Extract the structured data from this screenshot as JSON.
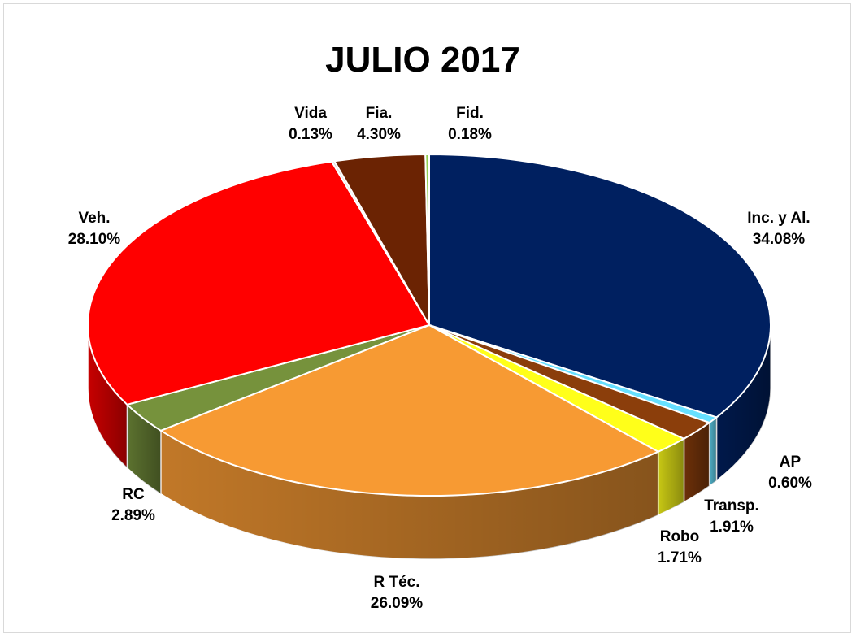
{
  "chart_data": {
    "type": "pie",
    "title": "JULIO 2017",
    "slices": [
      {
        "label": "Inc. y Al.",
        "pct_text": "34.08%",
        "value": 34.08,
        "color": "#002060"
      },
      {
        "label": "AP",
        "pct_text": "0.60%",
        "value": 0.6,
        "color": "#66e0ff"
      },
      {
        "label": "Transp.",
        "pct_text": "1.91%",
        "value": 1.91,
        "color": "#8b3e0b"
      },
      {
        "label": "Robo",
        "pct_text": "1.71%",
        "value": 1.71,
        "color": "#ffff1a"
      },
      {
        "label": "R Téc.",
        "pct_text": "26.09%",
        "value": 26.09,
        "color": "#f79a33"
      },
      {
        "label": "RC",
        "pct_text": "2.89%",
        "value": 2.89,
        "color": "#76923c"
      },
      {
        "label": "Veh.",
        "pct_text": "28.10%",
        "value": 28.1,
        "color": "#ff0000"
      },
      {
        "label": "Vida",
        "pct_text": "0.13%",
        "value": 0.13,
        "color": "#d9d9d9"
      },
      {
        "label": "Fia.",
        "pct_text": "4.30%",
        "value": 4.3,
        "color": "#6b2303"
      },
      {
        "label": "Fid.",
        "pct_text": "0.18%",
        "value": 0.18,
        "color": "#92d050"
      }
    ],
    "legend": "none",
    "style": "3d-pie"
  }
}
